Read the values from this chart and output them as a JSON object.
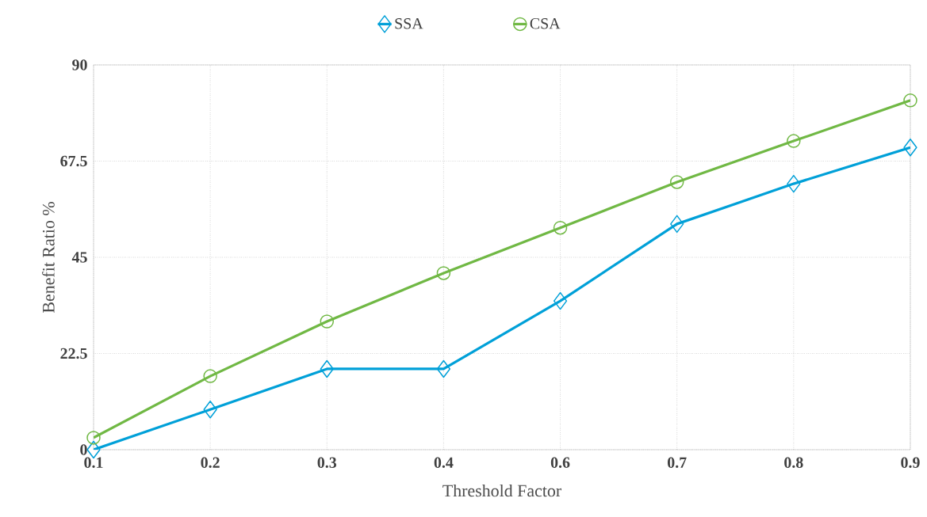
{
  "chart_data": {
    "type": "line",
    "xlabel": "Threshold Factor",
    "ylabel": "Benefit Ratio  %",
    "categories": [
      "0.1",
      "0.2",
      "0.3",
      "0.4",
      "0.6",
      "0.7",
      "0.8",
      "0.9"
    ],
    "series": [
      {
        "name": "SSA",
        "color": "#00a0d8",
        "marker": "diamond",
        "values": [
          0,
          9.4,
          18.9,
          18.9,
          34.8,
          52.8,
          62.2,
          70.7
        ]
      },
      {
        "name": "CSA",
        "color": "#70b844",
        "marker": "circle",
        "values": [
          2.8,
          17.2,
          30,
          41.3,
          51.9,
          62.6,
          72.2,
          81.7
        ]
      }
    ],
    "ylim": [
      0,
      90
    ],
    "yticks": [
      0,
      22.5,
      45,
      67.5,
      90
    ],
    "grid": true,
    "legend": "top",
    "line_style": "solid"
  }
}
